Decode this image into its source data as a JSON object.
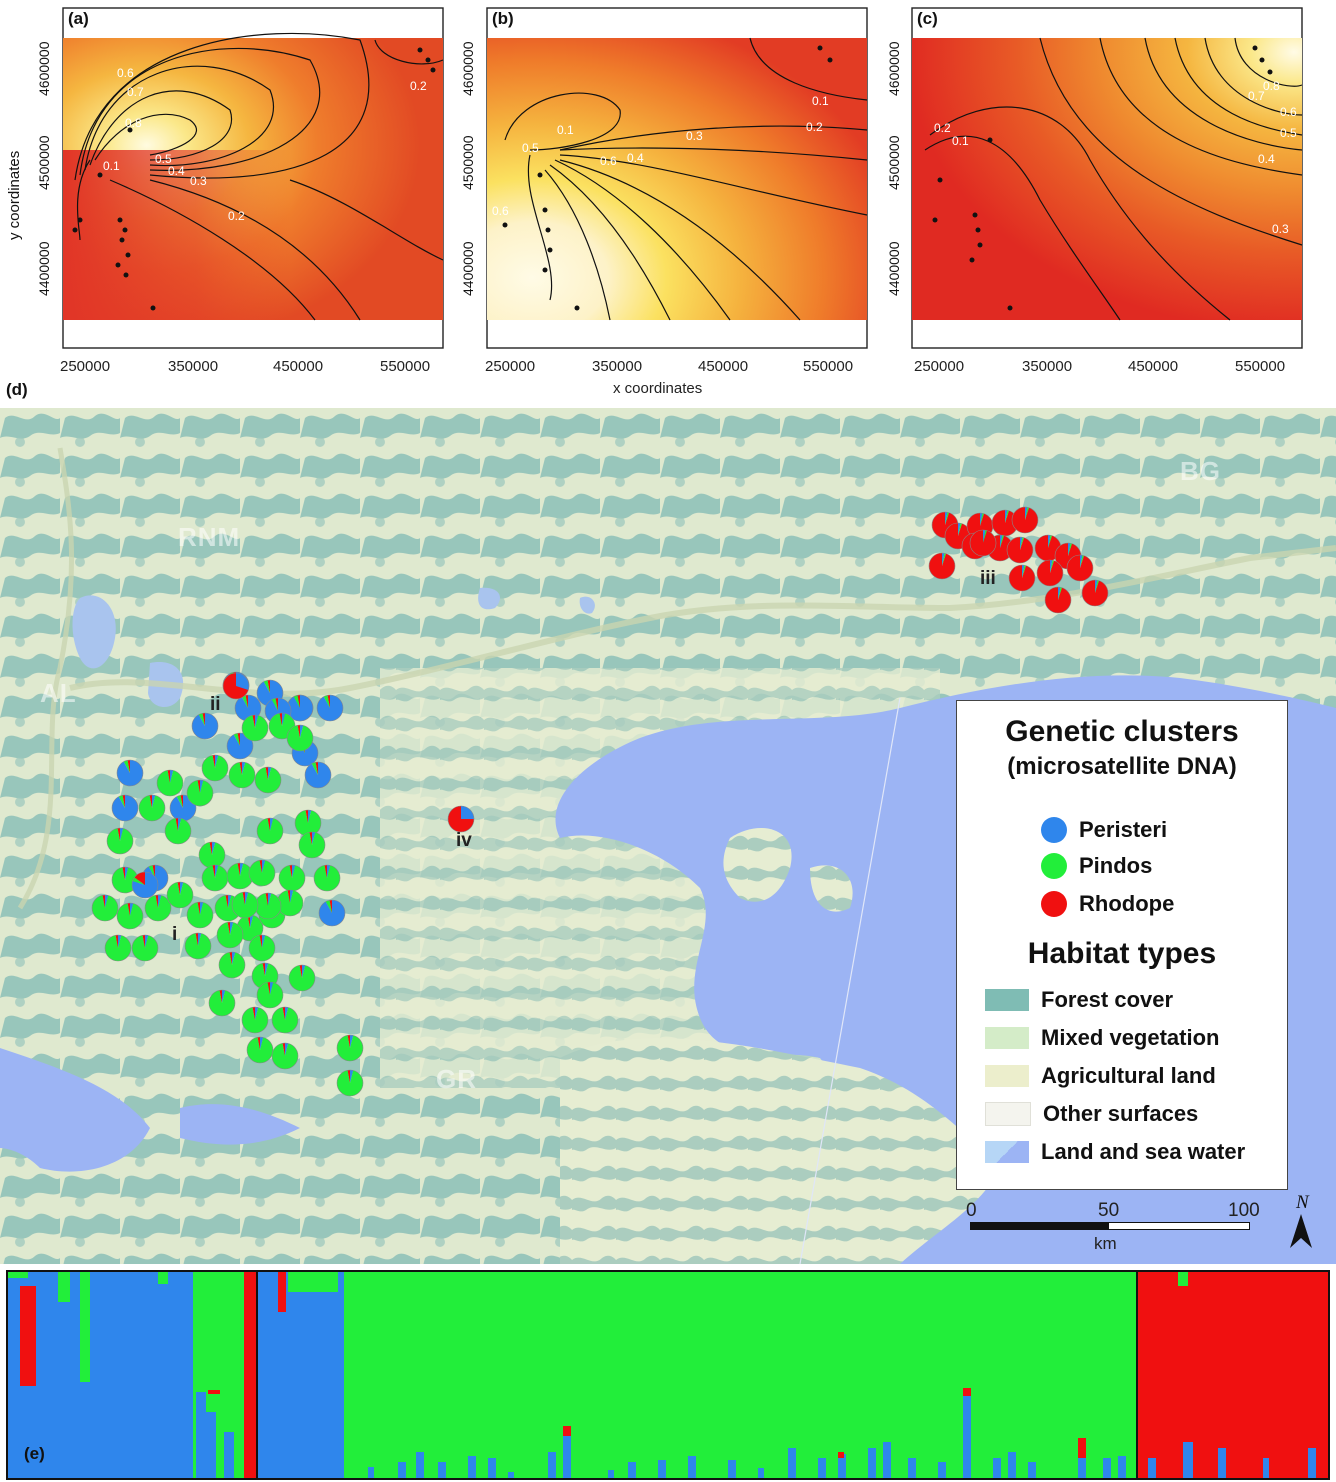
{
  "panels": [
    {
      "tag": "(a)"
    },
    {
      "tag": "(b)"
    },
    {
      "tag": "(c)"
    }
  ],
  "axes": {
    "x_ticks": [
      "250000",
      "350000",
      "450000",
      "550000"
    ],
    "y_ticks": [
      "4600000",
      "4500000",
      "4400000"
    ],
    "xlabel": "x coordinates",
    "ylabel": "y coordinates"
  },
  "contour_labels": {
    "a": [
      "0.6",
      "0.7",
      "0.8",
      "0.5",
      "0.4",
      "0.3",
      "0.1",
      "0.2",
      "0.2"
    ],
    "b": [
      "0.1",
      "0.1",
      "0.2",
      "0.3",
      "0.4",
      "0.5",
      "0.6",
      "0.6"
    ],
    "c": [
      "0.8",
      "0.7",
      "0.6",
      "0.5",
      "0.4",
      "0.3",
      "0.2",
      "0.1"
    ]
  },
  "map": {
    "tag": "(d)",
    "countries": [
      "RNM",
      "BG",
      "AL",
      "GR"
    ],
    "sites": [
      "i",
      "ii",
      "iii",
      "iv"
    ]
  },
  "legend": {
    "title1": "Genetic clusters",
    "title2": "(microsatellite DNA)",
    "clusters": [
      {
        "label": "Peristeri",
        "color": "#2f86ec"
      },
      {
        "label": "Pindos",
        "color": "#22ee3a"
      },
      {
        "label": "Rhodope",
        "color": "#f01010"
      }
    ],
    "habitat_title": "Habitat types",
    "habitats": [
      {
        "label": "Forest cover",
        "color": "#7fbcb4"
      },
      {
        "label": "Mixed vegetation",
        "color": "#d4ecc8"
      },
      {
        "label": "Agricultural land",
        "color": "#eceecc"
      },
      {
        "label": "Other surfaces",
        "color": "#f4f4ee"
      },
      {
        "label": "Land and sea water",
        "color": "#9cb4f4"
      }
    ],
    "scale_ticks": [
      "0",
      "50",
      "100"
    ],
    "scale_unit": "km",
    "north": "N"
  },
  "structure": {
    "tag": "(e)",
    "colors": {
      "peristeri": "#2f86ec",
      "pindos": "#22ee3a",
      "rhodope": "#f01010"
    }
  }
}
